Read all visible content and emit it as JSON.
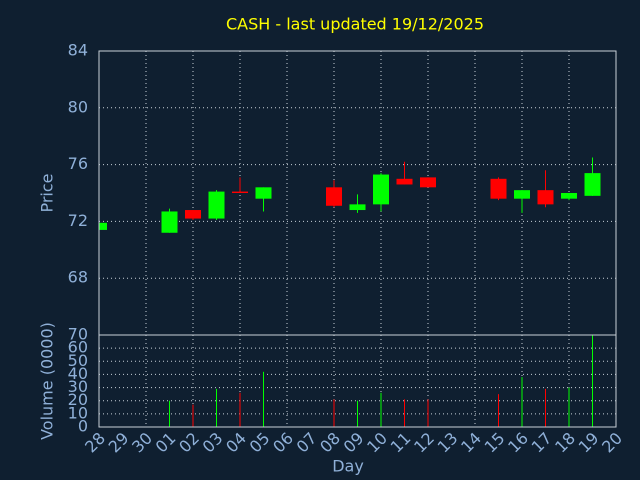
{
  "chart_data": {
    "type": "candlestick",
    "title": "CASH - last updated 19/12/2025",
    "xlabel": "Day",
    "ylabel": "Price",
    "y2label": "Volume (0000)",
    "categories": [
      "28",
      "29",
      "30",
      "01",
      "02",
      "03",
      "04",
      "05",
      "06",
      "07",
      "08",
      "09",
      "10",
      "11",
      "12",
      "13",
      "14",
      "15",
      "16",
      "17",
      "18",
      "19",
      "20"
    ],
    "open": [
      71.4,
      null,
      null,
      71.2,
      72.8,
      72.2,
      74.1,
      73.6,
      null,
      null,
      74.4,
      72.8,
      73.2,
      75.0,
      75.1,
      null,
      null,
      75.0,
      73.6,
      74.2,
      73.6,
      73.8,
      null
    ],
    "high": [
      71.9,
      null,
      null,
      72.9,
      72.8,
      74.2,
      75.1,
      74.4,
      null,
      null,
      74.9,
      73.9,
      75.4,
      76.2,
      75.1,
      null,
      null,
      75.1,
      74.2,
      75.6,
      74.0,
      76.5,
      null
    ],
    "low": [
      71.4,
      null,
      null,
      71.2,
      72.1,
      72.1,
      74.0,
      72.7,
      null,
      null,
      73.0,
      72.6,
      72.7,
      74.6,
      74.4,
      null,
      null,
      73.5,
      72.6,
      73.0,
      73.5,
      73.8,
      null
    ],
    "close": [
      71.9,
      null,
      null,
      72.7,
      72.2,
      74.1,
      74.0,
      74.4,
      null,
      null,
      73.1,
      73.2,
      75.3,
      74.6,
      74.4,
      null,
      null,
      73.6,
      74.2,
      73.2,
      74.0,
      75.4,
      null
    ],
    "volume": [
      null,
      null,
      null,
      20,
      17,
      29,
      26,
      42,
      null,
      null,
      21,
      20,
      26,
      21,
      21,
      null,
      null,
      25,
      38,
      29,
      30,
      70,
      null
    ],
    "up_color": "#00ff00",
    "down_color": "#ff0000",
    "ylim": [
      64,
      84
    ],
    "yticks": [
      68,
      72,
      76,
      80,
      84
    ],
    "y2lim": [
      0,
      70
    ],
    "y2ticks": [
      0,
      10,
      20,
      30,
      40,
      50,
      60,
      70
    ],
    "grid": true
  }
}
